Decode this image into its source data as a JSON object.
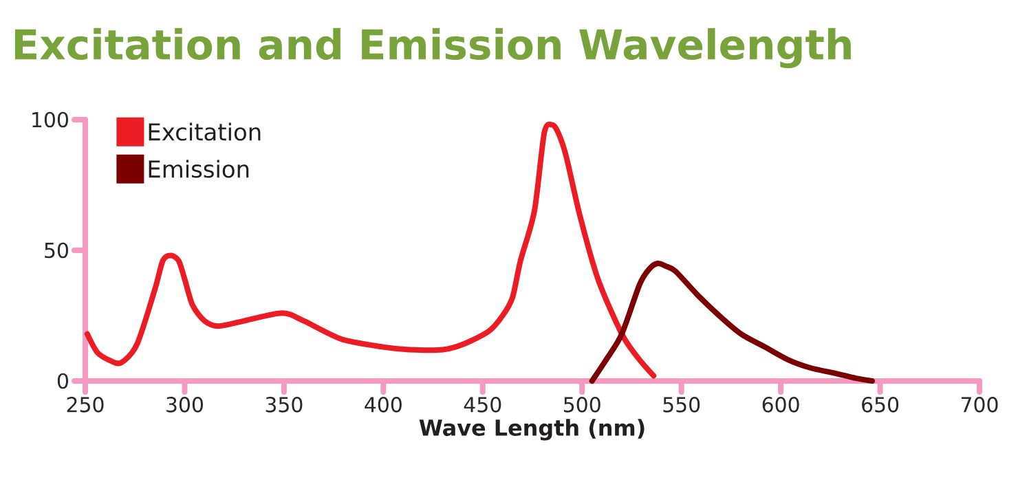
{
  "chart_data": {
    "type": "line",
    "title": "Excitation and Emission Wavelength",
    "xlabel": "Wave Length (nm)",
    "xlim": [
      250,
      700
    ],
    "xticks": [
      250,
      300,
      350,
      400,
      450,
      500,
      550,
      600,
      650,
      700
    ],
    "ylim": [
      0,
      100
    ],
    "yticks": [
      0,
      50,
      100
    ],
    "legend": "top left",
    "grid": false,
    "marker": "none",
    "line_style": "solid",
    "series": [
      {
        "name": "Excitation",
        "color": "#ec1c24",
        "x": [
          251,
          256,
          262,
          268,
          276,
          285,
          289,
          293,
          297,
          300,
          304,
          310,
          317,
          330,
          349,
          360,
          379,
          400,
          413,
          430,
          440,
          453,
          460,
          465,
          469,
          476,
          481,
          485,
          488,
          492,
          499,
          508,
          520,
          528,
          536
        ],
        "values": [
          18,
          11,
          8,
          7,
          14,
          35,
          46,
          48,
          46,
          39,
          29,
          23,
          21,
          23,
          26,
          23,
          16,
          13,
          12,
          12,
          14,
          19,
          25,
          32,
          46,
          65,
          95,
          98,
          95,
          86,
          63,
          39,
          18,
          9,
          2
        ]
      },
      {
        "name": "Emission",
        "color": "#7b0000",
        "x": [
          505,
          512,
          520,
          529,
          534,
          538,
          542,
          547,
          558,
          569,
          580,
          592,
          604,
          615,
          627,
          638,
          646
        ],
        "values": [
          0,
          8,
          18,
          37,
          43,
          45,
          44,
          42,
          33,
          25,
          18,
          13,
          8,
          5,
          3,
          1,
          0
        ]
      }
    ]
  }
}
